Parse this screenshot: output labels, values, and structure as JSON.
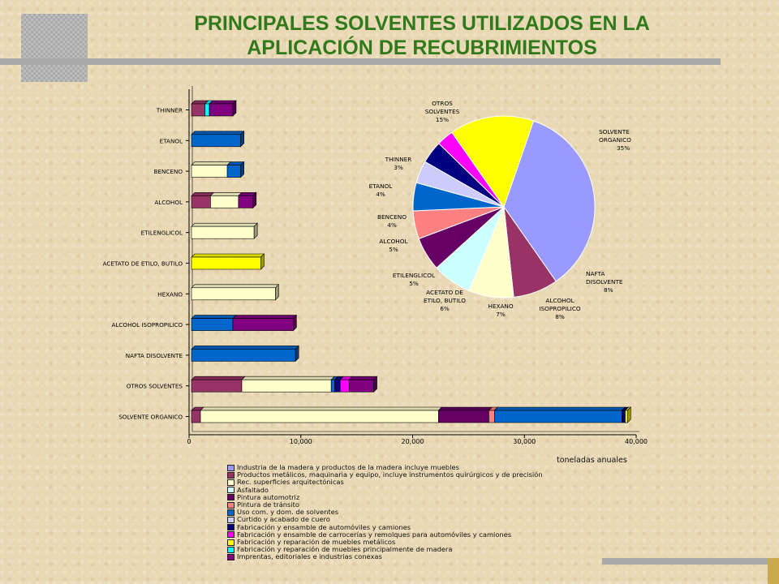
{
  "title_line1": "PRINCIPALES SOLVENTES UTILIZADOS EN LA",
  "title_line2": "APLICACIÓN DE RECUBRIMIENTOS",
  "chart_data": [
    {
      "type": "bar",
      "orientation": "horizontal",
      "stacked": true,
      "xlabel": "toneladas anuales",
      "xlim": [
        0,
        40000
      ],
      "xticks": [
        "0",
        "10,000",
        "20,000",
        "30,000",
        "40,000"
      ],
      "categories": [
        "THINNER",
        "ETANOL",
        "BENCENO",
        "ALCOHOL",
        "ETILENGLICOL",
        "ACETATO DE ETILO, BUTILO",
        "HEXANO",
        "ALCOHOL ISOPROPILICO",
        "NAFTA DISOLVENTE",
        "OTROS SOLVENTES",
        "SOLVENTE ORGANICO"
      ],
      "series": [
        {
          "name": "Industria de la madera y productos de la madera incluye muebles",
          "color": "#9999ff",
          "values": [
            0,
            0,
            0,
            0,
            0,
            0,
            0,
            0,
            0,
            0,
            0
          ]
        },
        {
          "name": "Productos metálicos, maquinaria y equipo, incluye instrumentos quirúrgicos y de precisión",
          "color": "#993366",
          "values": [
            1200,
            0,
            0,
            1700,
            0,
            0,
            0,
            0,
            0,
            4500,
            800
          ]
        },
        {
          "name": "Rec. superficies arquitectónicas",
          "color": "#ffffcc",
          "values": [
            0,
            0,
            3200,
            2500,
            5600,
            0,
            7500,
            0,
            0,
            8000,
            21300
          ]
        },
        {
          "name": "Asfaltado",
          "color": "#ccffff",
          "values": [
            0,
            0,
            0,
            0,
            0,
            0,
            0,
            0,
            0,
            0,
            0
          ]
        },
        {
          "name": "Pintura automotriz",
          "color": "#660066",
          "values": [
            0,
            0,
            0,
            0,
            0,
            0,
            0,
            0,
            0,
            0,
            4500
          ]
        },
        {
          "name": "Pintura de tránsito",
          "color": "#ff8080",
          "values": [
            0,
            0,
            0,
            0,
            0,
            0,
            0,
            0,
            0,
            0,
            500
          ]
        },
        {
          "name": "Uso com. y dom. de solventes",
          "color": "#0066cc",
          "values": [
            0,
            4400,
            1200,
            0,
            0,
            0,
            0,
            3700,
            9300,
            300,
            11400
          ]
        },
        {
          "name": "Curtido y acabado de cuero",
          "color": "#ccccff",
          "values": [
            0,
            0,
            0,
            0,
            0,
            0,
            0,
            0,
            0,
            0,
            0
          ]
        },
        {
          "name": "Fabricación y ensamble de automóviles y camiones",
          "color": "#000080",
          "values": [
            0,
            0,
            0,
            0,
            0,
            0,
            0,
            0,
            0,
            500,
            300
          ]
        },
        {
          "name": "Fabricación y ensamble de carrocerías y remolques para automóviles y camiones",
          "color": "#ff00ff",
          "values": [
            0,
            0,
            0,
            0,
            0,
            0,
            0,
            0,
            0,
            800,
            0
          ]
        },
        {
          "name": "Fabricación y reparación de muebles metálicos",
          "color": "#ffff00",
          "values": [
            0,
            0,
            0,
            0,
            0,
            6200,
            0,
            0,
            0,
            0,
            200
          ]
        },
        {
          "name": "Fabricación y reparación de muebles principalmente de madera",
          "color": "#00ffff",
          "values": [
            400,
            0,
            0,
            0,
            0,
            0,
            0,
            0,
            0,
            0,
            0
          ]
        },
        {
          "name": "Imprentas, editoriales e industrias conexas",
          "color": "#800080",
          "values": [
            2100,
            0,
            0,
            1300,
            0,
            0,
            0,
            5400,
            0,
            2200,
            0
          ]
        }
      ]
    },
    {
      "type": "pie",
      "slices": [
        {
          "label": "SOLVENTE ORGANICO",
          "pct_label": "35%",
          "value": 35,
          "color": "#9999ff"
        },
        {
          "label": "NAFTA DISOLVENTE",
          "pct_label": "8%",
          "value": 8,
          "color": "#993366"
        },
        {
          "label": "ALCOHOL ISOPROPILICO",
          "pct_label": "8%",
          "value": 8,
          "color": "#ffffcc"
        },
        {
          "label": "HEXANO",
          "pct_label": "7%",
          "value": 7,
          "color": "#ccffff"
        },
        {
          "label": "ACETATO DE ETILO, BUTILO",
          "pct_label": "6%",
          "value": 6,
          "color": "#660066"
        },
        {
          "label": "ETILENGLICOL",
          "pct_label": "5%",
          "value": 5,
          "color": "#ff8080"
        },
        {
          "label": "ALCOHOL",
          "pct_label": "5%",
          "value": 5,
          "color": "#0066cc"
        },
        {
          "label": "BENCENO",
          "pct_label": "4%",
          "value": 4,
          "color": "#ccccff"
        },
        {
          "label": "ETANOL",
          "pct_label": "4%",
          "value": 4,
          "color": "#000080"
        },
        {
          "label": "THINNER",
          "pct_label": "3%",
          "value": 3,
          "color": "#ff00ff"
        },
        {
          "label": "OTROS SOLVENTES",
          "pct_label": "15%",
          "value": 15,
          "color": "#ffff00"
        }
      ]
    }
  ]
}
